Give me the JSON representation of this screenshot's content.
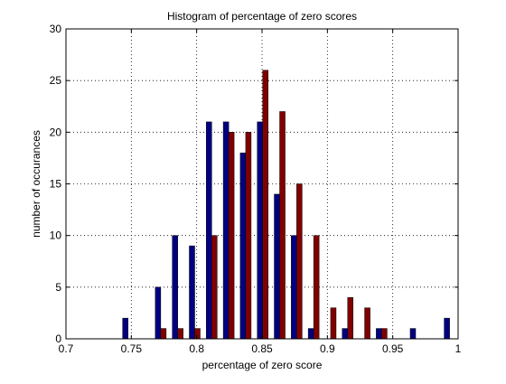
{
  "chart_data": {
    "type": "bar",
    "title": "Histogram of percentage of zero scores",
    "xlabel": "percentage of zero score",
    "ylabel": "number of occurances",
    "xlim": [
      0.7,
      1.0
    ],
    "ylim": [
      0,
      30
    ],
    "xticks": [
      "0.7",
      "0.75",
      "0.8",
      "0.85",
      "0.9",
      "0.95",
      "1"
    ],
    "xtick_values": [
      0.7,
      0.75,
      0.8,
      0.85,
      0.9,
      0.95,
      1.0
    ],
    "yticks": [
      "0",
      "5",
      "10",
      "15",
      "20",
      "25",
      "30"
    ],
    "ytick_values": [
      0,
      5,
      10,
      15,
      20,
      25,
      30
    ],
    "grid": true,
    "legend": null,
    "bin_centers": [
      0.7475,
      0.7725,
      0.7855,
      0.7985,
      0.8115,
      0.8245,
      0.8375,
      0.8505,
      0.8635,
      0.8765,
      0.8895,
      0.9025,
      0.9155,
      0.9285,
      0.9415,
      0.9545,
      0.9675,
      0.9935
    ],
    "series": [
      {
        "color": "#000080",
        "values": [
          2,
          5,
          10,
          9,
          21,
          21,
          18,
          21,
          14,
          10,
          1,
          0,
          1,
          0,
          1,
          0,
          1,
          2
        ]
      },
      {
        "color": "#800000",
        "values": [
          0,
          1,
          1,
          1,
          10,
          20,
          20,
          26,
          22,
          15,
          10,
          3,
          4,
          3,
          1,
          0,
          0,
          0
        ]
      }
    ]
  }
}
